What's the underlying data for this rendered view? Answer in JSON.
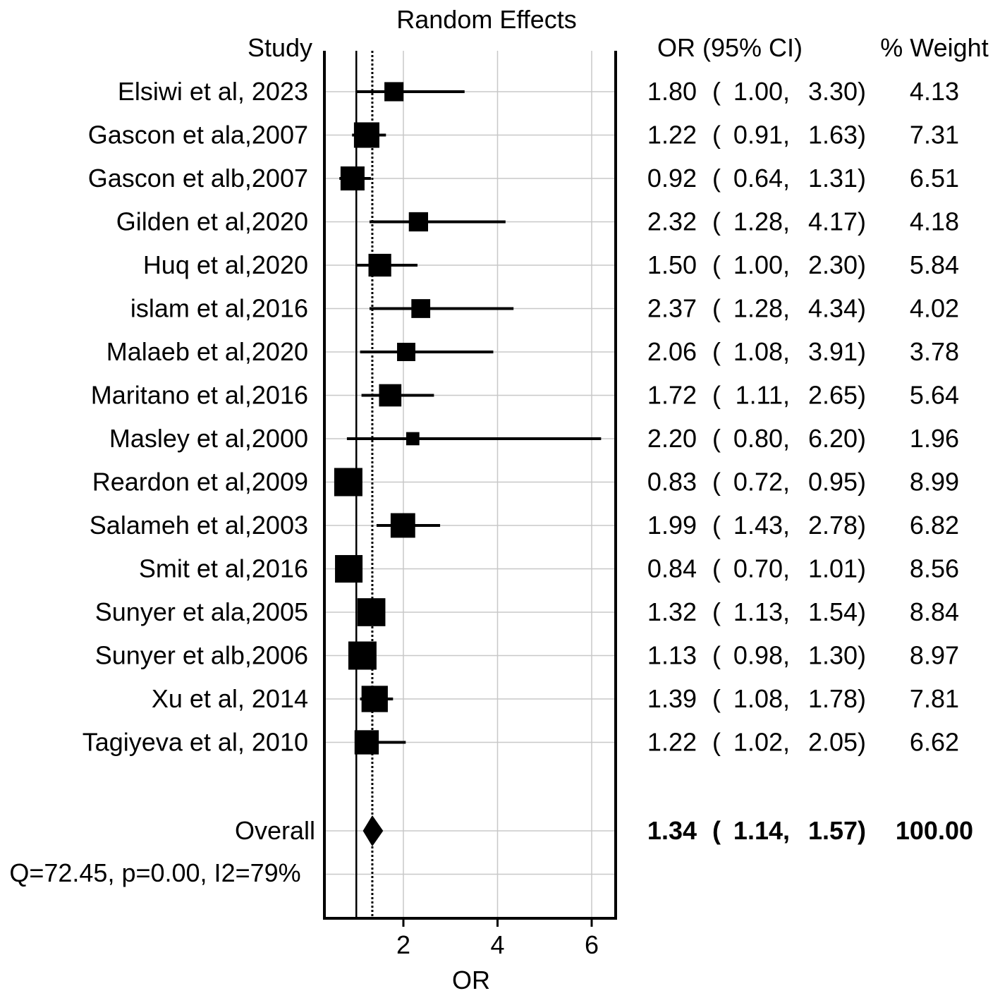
{
  "chart_data": {
    "type": "forest",
    "title": "Random Effects",
    "xlabel": "OR",
    "study_header": "Study",
    "ci_header": "OR (95% CI)",
    "weight_header": "% Weight",
    "xlim": [
      0.5,
      6.5
    ],
    "xticks": [
      2,
      4,
      6
    ],
    "null_value": 1,
    "grid": true,
    "studies": [
      {
        "name": "Elsiwi et al, 2023",
        "or": 1.8,
        "lo": 1.0,
        "hi": 3.3,
        "or_text": "1.80",
        "lo_text": "1.00,",
        "hi_text": "3.30)",
        "weight": "4.13"
      },
      {
        "name": "Gascon et ala,2007",
        "or": 1.22,
        "lo": 0.91,
        "hi": 1.63,
        "or_text": "1.22",
        "lo_text": "0.91,",
        "hi_text": "1.63)",
        "weight": "7.31"
      },
      {
        "name": "Gascon et alb,2007",
        "or": 0.92,
        "lo": 0.64,
        "hi": 1.31,
        "or_text": "0.92",
        "lo_text": "0.64,",
        "hi_text": "1.31)",
        "weight": "6.51"
      },
      {
        "name": "Gilden et al,2020",
        "or": 2.32,
        "lo": 1.28,
        "hi": 4.17,
        "or_text": "2.32",
        "lo_text": "1.28,",
        "hi_text": "4.17)",
        "weight": "4.18"
      },
      {
        "name": "Huq et al,2020",
        "or": 1.5,
        "lo": 1.0,
        "hi": 2.3,
        "or_text": "1.50",
        "lo_text": "1.00,",
        "hi_text": "2.30)",
        "weight": "5.84"
      },
      {
        "name": "islam et al,2016",
        "or": 2.37,
        "lo": 1.28,
        "hi": 4.34,
        "or_text": "2.37",
        "lo_text": "1.28,",
        "hi_text": "4.34)",
        "weight": "4.02"
      },
      {
        "name": "Malaeb et al,2020",
        "or": 2.06,
        "lo": 1.08,
        "hi": 3.91,
        "or_text": "2.06",
        "lo_text": "1.08,",
        "hi_text": "3.91)",
        "weight": "3.78"
      },
      {
        "name": "Maritano et al,2016",
        "or": 1.72,
        "lo": 1.11,
        "hi": 2.65,
        "or_text": "1.72",
        "lo_text": "1.11,",
        "hi_text": "2.65)",
        "weight": "5.64"
      },
      {
        "name": "Masley et al,2000",
        "or": 2.2,
        "lo": 0.8,
        "hi": 6.2,
        "or_text": "2.20",
        "lo_text": "0.80,",
        "hi_text": "6.20)",
        "weight": "1.96"
      },
      {
        "name": "Reardon et al,2009",
        "or": 0.83,
        "lo": 0.72,
        "hi": 0.95,
        "or_text": "0.83",
        "lo_text": "0.72,",
        "hi_text": "0.95)",
        "weight": "8.99"
      },
      {
        "name": "Salameh et al,2003",
        "or": 1.99,
        "lo": 1.43,
        "hi": 2.78,
        "or_text": "1.99",
        "lo_text": "1.43,",
        "hi_text": "2.78)",
        "weight": "6.82"
      },
      {
        "name": "Smit et al,2016",
        "or": 0.84,
        "lo": 0.7,
        "hi": 1.01,
        "or_text": "0.84",
        "lo_text": "0.70,",
        "hi_text": "1.01)",
        "weight": "8.56"
      },
      {
        "name": "Sunyer et ala,2005",
        "or": 1.32,
        "lo": 1.13,
        "hi": 1.54,
        "or_text": "1.32",
        "lo_text": "1.13,",
        "hi_text": "1.54)",
        "weight": "8.84"
      },
      {
        "name": "Sunyer et alb,2006",
        "or": 1.13,
        "lo": 0.98,
        "hi": 1.3,
        "or_text": "1.13",
        "lo_text": "0.98,",
        "hi_text": "1.30)",
        "weight": "8.97"
      },
      {
        "name": "Xu et al, 2014",
        "or": 1.39,
        "lo": 1.08,
        "hi": 1.78,
        "or_text": "1.39",
        "lo_text": "1.08,",
        "hi_text": "1.78)",
        "weight": "7.81"
      },
      {
        "name": "Tagiyeva et al, 2010",
        "or": 1.22,
        "lo": 1.02,
        "hi": 2.05,
        "or_text": "1.22",
        "lo_text": "1.02,",
        "hi_text": "2.05)",
        "weight": "6.62"
      }
    ],
    "overall": {
      "name": "Overall",
      "or": 1.34,
      "lo": 1.14,
      "hi": 1.57,
      "or_text": "1.34",
      "lo_text": "1.14,",
      "hi_text": "1.57)",
      "weight": "100.00"
    },
    "heterogeneity": "Q=72.45, p=0.00, I2=79%"
  }
}
